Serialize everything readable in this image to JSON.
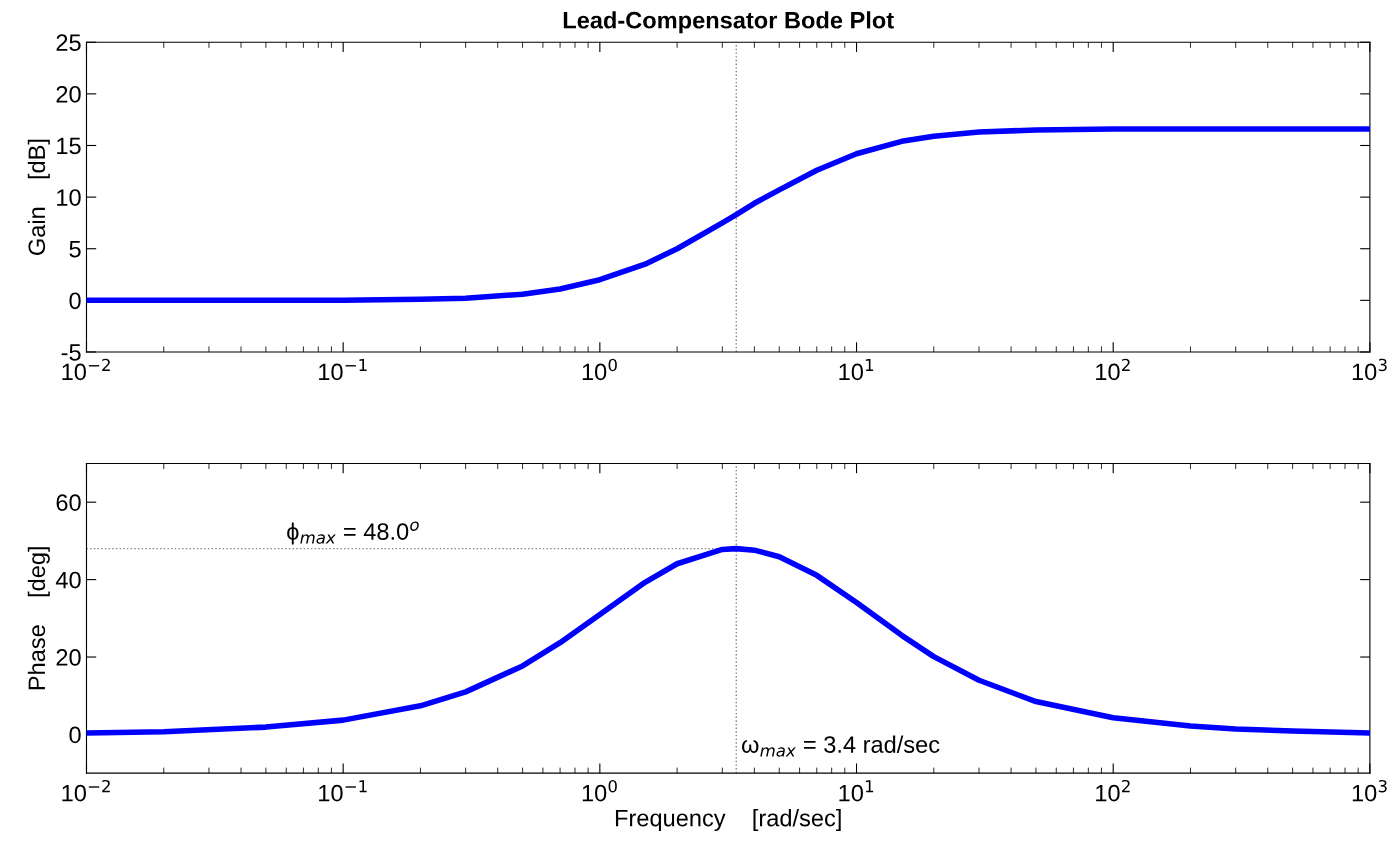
{
  "chart_data": [
    {
      "type": "line",
      "title": "Lead-Compensator Bode Plot",
      "ylabel": "Gain    [dB]",
      "log": "x",
      "x": [
        0.01,
        0.02,
        0.05,
        0.1,
        0.2,
        0.3,
        0.5,
        0.7,
        1,
        1.5,
        2,
        3,
        3.4,
        4,
        5,
        7,
        10,
        15,
        20,
        30,
        50,
        100,
        200,
        300,
        500,
        1000
      ],
      "series": [
        {
          "color": "#0000ff",
          "values": [
            0,
            0,
            0,
            0,
            0.1,
            0.2,
            0.6,
            1.1,
            2,
            3.5,
            5,
            7.5,
            8.3,
            9.4,
            10.7,
            12.6,
            14.2,
            15.4,
            15.9,
            16.3,
            16.5,
            16.6,
            16.6,
            16.6,
            16.6,
            16.6
          ]
        }
      ],
      "xlim": [
        0.01,
        1000
      ],
      "xticks": [
        {
          "value": 0.01,
          "label": "10$^{−2}$"
        },
        {
          "value": 0.1,
          "label": "10$^{−1}$"
        },
        {
          "value": 1,
          "label": "10$^{0}$"
        },
        {
          "value": 10,
          "label": "10$^{1}$"
        },
        {
          "value": 100,
          "label": "10$^{2}$"
        },
        {
          "value": 1000,
          "label": "10$^{3}$"
        }
      ],
      "ylim": [
        -5,
        25
      ],
      "yticks": [
        -5,
        0,
        5,
        10,
        15,
        20,
        25
      ],
      "ref_lines": [
        {
          "axis": "x",
          "value": 3.4,
          "color": "#808080",
          "line_style": "dotted"
        }
      ],
      "grid": false,
      "legend": false
    },
    {
      "type": "line",
      "xlabel": "Frequency    [rad/sec]",
      "ylabel": "Phase    [deg]",
      "log": "x",
      "x": [
        0.01,
        0.02,
        0.05,
        0.1,
        0.2,
        0.3,
        0.5,
        0.7,
        1,
        1.5,
        2,
        3,
        3.4,
        4,
        5,
        7,
        10,
        15,
        20,
        30,
        50,
        100,
        200,
        300,
        500,
        1000
      ],
      "series": [
        {
          "color": "#0000ff",
          "values": [
            0.4,
            0.7,
            1.9,
            3.7,
            7.4,
            11,
            17.7,
            23.7,
            31,
            39.3,
            44.1,
            47.8,
            48,
            47.6,
            45.9,
            41.1,
            34.1,
            25.6,
            20.1,
            14,
            8.5,
            4.3,
            2.2,
            1.4,
            0.9,
            0.4
          ]
        }
      ],
      "xlim": [
        0.01,
        1000
      ],
      "xticks": [
        {
          "value": 0.01,
          "label": "10$^{−2}$"
        },
        {
          "value": 0.1,
          "label": "10$^{−1}$"
        },
        {
          "value": 1,
          "label": "10$^{0}$"
        },
        {
          "value": 10,
          "label": "10$^{1}$"
        },
        {
          "value": 100,
          "label": "10$^{2}$"
        },
        {
          "value": 1000,
          "label": "10$^{3}$"
        }
      ],
      "ylim": [
        -10,
        70
      ],
      "yticks": [
        0,
        20,
        40,
        60
      ],
      "ref_lines": [
        {
          "axis": "x",
          "value": 3.4,
          "color": "#808080",
          "line_style": "dotted"
        },
        {
          "axis": "y",
          "value": 48,
          "color": "#808080",
          "line_style": "dotted"
        }
      ],
      "annotations": [
        {
          "text": "ϕ$_{max}$ = 48.0$^{o}$",
          "x": 0.06,
          "y": 49
        },
        "ω$_{max}$ = 3.4 rad/sec"
      ],
      "grid": false,
      "legend": false
    }
  ]
}
